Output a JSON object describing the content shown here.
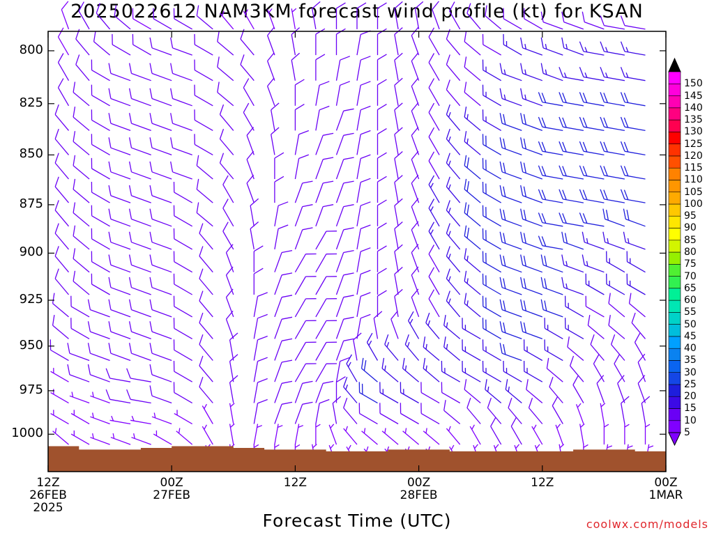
{
  "title": "2025022612 NAM3KM forecast wind profile (kt) for KSAN",
  "xlabel": "Forecast Time (UTC)",
  "credit": "coolwx.com/models",
  "chart_data": {
    "type": "wind-barb time-height profile",
    "title": "2025022612 NAM3KM forecast wind profile (kt) for KSAN",
    "xlabel": "Forecast Time (UTC)",
    "ylabel": "",
    "y_axis_inverted": true,
    "ylim": [
      1022,
      791
    ],
    "yticks": [
      800,
      825,
      850,
      875,
      900,
      925,
      950,
      975,
      1000
    ],
    "xlim": [
      0,
      60
    ],
    "xtick_hours": [
      0,
      12,
      24,
      36,
      48,
      60
    ],
    "xtick_labels": [
      [
        "12Z",
        "26FEB",
        "2025"
      ],
      [
        "00Z",
        "27FEB"
      ],
      [
        "12Z"
      ],
      [
        "00Z",
        "28FEB"
      ],
      [
        "12Z"
      ],
      [
        "00Z",
        "1MAR"
      ]
    ],
    "barb_levels_hpa": [
      790,
      802,
      814,
      826,
      838,
      850,
      862,
      874,
      886,
      898,
      910,
      922,
      934,
      946,
      958,
      970,
      982,
      994,
      1006,
      1018
    ],
    "barb_hours": [
      2,
      4,
      6,
      8,
      10,
      12,
      14,
      16,
      18,
      20,
      22,
      24,
      26,
      28,
      30,
      32,
      34,
      36,
      38,
      40,
      42,
      44,
      46,
      48,
      50,
      52,
      54,
      56,
      58
    ],
    "wind_speed_kt": [
      [
        8,
        10,
        10,
        10,
        8,
        10,
        10,
        10,
        5,
        5,
        5,
        5,
        10,
        10,
        10,
        10,
        10,
        10,
        10,
        10,
        10,
        10,
        10,
        10,
        10,
        10,
        10,
        10,
        10
      ],
      [
        8,
        10,
        10,
        10,
        10,
        10,
        10,
        10,
        10,
        10,
        10,
        10,
        10,
        10,
        10,
        10,
        10,
        10,
        10,
        10,
        10,
        10,
        15,
        15,
        15,
        15,
        15,
        15,
        15
      ],
      [
        10,
        10,
        10,
        10,
        10,
        10,
        10,
        10,
        10,
        10,
        10,
        10,
        10,
        10,
        10,
        10,
        10,
        10,
        10,
        10,
        10,
        15,
        15,
        15,
        15,
        15,
        15,
        15,
        15
      ],
      [
        10,
        10,
        10,
        10,
        10,
        10,
        10,
        10,
        10,
        10,
        10,
        10,
        10,
        10,
        10,
        10,
        10,
        10,
        10,
        10,
        10,
        15,
        15,
        15,
        20,
        20,
        20,
        20,
        20
      ],
      [
        10,
        10,
        10,
        10,
        10,
        10,
        10,
        10,
        10,
        10,
        10,
        10,
        10,
        10,
        10,
        10,
        10,
        10,
        10,
        15,
        15,
        15,
        20,
        20,
        20,
        20,
        20,
        20,
        20
      ],
      [
        10,
        10,
        10,
        10,
        10,
        10,
        10,
        10,
        10,
        10,
        10,
        10,
        10,
        10,
        10,
        10,
        10,
        10,
        10,
        15,
        15,
        20,
        20,
        20,
        20,
        20,
        20,
        20,
        20
      ],
      [
        10,
        10,
        10,
        10,
        10,
        10,
        10,
        10,
        10,
        10,
        10,
        10,
        10,
        10,
        10,
        10,
        10,
        10,
        10,
        15,
        20,
        20,
        20,
        20,
        20,
        20,
        20,
        20,
        20
      ],
      [
        10,
        10,
        10,
        10,
        10,
        10,
        10,
        10,
        10,
        10,
        10,
        10,
        10,
        10,
        10,
        10,
        10,
        10,
        15,
        15,
        20,
        20,
        20,
        20,
        20,
        20,
        20,
        20,
        20
      ],
      [
        10,
        10,
        10,
        10,
        10,
        10,
        10,
        10,
        10,
        10,
        10,
        10,
        10,
        10,
        10,
        10,
        10,
        10,
        15,
        15,
        20,
        20,
        20,
        20,
        20,
        20,
        20,
        20,
        20
      ],
      [
        10,
        10,
        10,
        10,
        10,
        10,
        10,
        10,
        10,
        10,
        10,
        10,
        10,
        10,
        10,
        10,
        10,
        10,
        15,
        15,
        20,
        20,
        20,
        20,
        20,
        20,
        15,
        15,
        15
      ],
      [
        10,
        10,
        10,
        10,
        10,
        10,
        10,
        10,
        10,
        10,
        10,
        10,
        10,
        10,
        10,
        10,
        10,
        10,
        10,
        15,
        15,
        20,
        20,
        20,
        20,
        15,
        15,
        15,
        15
      ],
      [
        10,
        10,
        10,
        10,
        10,
        10,
        10,
        10,
        10,
        10,
        10,
        10,
        10,
        10,
        10,
        10,
        10,
        10,
        10,
        15,
        15,
        20,
        20,
        20,
        20,
        15,
        15,
        15,
        15
      ],
      [
        10,
        10,
        10,
        10,
        10,
        10,
        10,
        10,
        10,
        10,
        10,
        10,
        10,
        10,
        10,
        10,
        10,
        10,
        10,
        15,
        15,
        20,
        20,
        20,
        20,
        15,
        10,
        10,
        10
      ],
      [
        10,
        10,
        10,
        10,
        10,
        10,
        10,
        10,
        10,
        10,
        10,
        10,
        10,
        10,
        10,
        10,
        10,
        15,
        15,
        15,
        15,
        20,
        20,
        20,
        15,
        15,
        10,
        10,
        10
      ],
      [
        10,
        10,
        10,
        10,
        10,
        10,
        10,
        10,
        10,
        10,
        10,
        10,
        10,
        10,
        10,
        15,
        15,
        15,
        15,
        15,
        15,
        15,
        20,
        15,
        15,
        10,
        10,
        10,
        10
      ],
      [
        5,
        10,
        10,
        10,
        10,
        10,
        10,
        10,
        10,
        10,
        10,
        10,
        10,
        10,
        15,
        20,
        15,
        15,
        15,
        15,
        15,
        15,
        15,
        15,
        10,
        10,
        10,
        10,
        10
      ],
      [
        5,
        5,
        5,
        10,
        10,
        10,
        10,
        10,
        10,
        10,
        10,
        10,
        10,
        10,
        15,
        20,
        15,
        15,
        10,
        10,
        10,
        15,
        15,
        10,
        10,
        10,
        10,
        10,
        10
      ],
      [
        5,
        5,
        5,
        5,
        5,
        5,
        5,
        5,
        5,
        10,
        10,
        10,
        10,
        10,
        10,
        10,
        10,
        10,
        10,
        10,
        10,
        10,
        10,
        10,
        10,
        5,
        5,
        10,
        10
      ],
      [
        5,
        5,
        5,
        5,
        5,
        5,
        5,
        5,
        5,
        5,
        5,
        5,
        5,
        5,
        5,
        5,
        5,
        5,
        5,
        5,
        5,
        10,
        10,
        5,
        5,
        5,
        5,
        5,
        5
      ],
      [
        5,
        5,
        5,
        5,
        5,
        5,
        5,
        5,
        5,
        5,
        5,
        5,
        5,
        5,
        5,
        5,
        5,
        5,
        5,
        5,
        5,
        5,
        5,
        5,
        5,
        5,
        5,
        5,
        5
      ]
    ],
    "wind_dir_deg": [
      [
        340,
        330,
        320,
        310,
        300,
        300,
        300,
        310,
        320,
        330,
        340,
        350,
        350,
        0,
        0,
        0,
        350,
        350,
        340,
        330,
        320,
        310,
        300,
        300,
        290,
        290,
        290,
        280,
        280
      ],
      [
        330,
        320,
        310,
        300,
        300,
        290,
        290,
        300,
        310,
        320,
        340,
        350,
        0,
        0,
        10,
        0,
        350,
        340,
        330,
        320,
        310,
        300,
        300,
        290,
        290,
        290,
        280,
        280,
        280
      ],
      [
        330,
        320,
        300,
        290,
        290,
        290,
        290,
        300,
        310,
        320,
        340,
        350,
        0,
        10,
        10,
        0,
        350,
        340,
        330,
        320,
        310,
        300,
        290,
        290,
        290,
        280,
        280,
        280,
        280
      ],
      [
        330,
        310,
        300,
        290,
        290,
        290,
        290,
        300,
        310,
        330,
        340,
        0,
        10,
        10,
        10,
        0,
        350,
        340,
        330,
        320,
        310,
        300,
        290,
        290,
        280,
        280,
        280,
        280,
        280
      ],
      [
        320,
        310,
        300,
        290,
        290,
        290,
        290,
        300,
        320,
        330,
        350,
        0,
        10,
        20,
        10,
        0,
        350,
        340,
        330,
        320,
        310,
        300,
        290,
        290,
        280,
        280,
        280,
        280,
        280
      ],
      [
        320,
        310,
        300,
        290,
        290,
        290,
        290,
        300,
        320,
        340,
        350,
        10,
        20,
        20,
        10,
        0,
        350,
        340,
        330,
        320,
        310,
        300,
        290,
        290,
        280,
        280,
        280,
        280,
        280
      ],
      [
        320,
        310,
        300,
        290,
        290,
        290,
        290,
        310,
        320,
        340,
        0,
        10,
        20,
        20,
        10,
        0,
        350,
        340,
        330,
        320,
        310,
        300,
        290,
        290,
        280,
        280,
        280,
        280,
        280
      ],
      [
        320,
        310,
        300,
        290,
        290,
        290,
        300,
        310,
        330,
        340,
        0,
        20,
        20,
        20,
        10,
        0,
        350,
        340,
        330,
        320,
        310,
        300,
        290,
        290,
        280,
        280,
        280,
        280,
        280
      ],
      [
        320,
        310,
        300,
        290,
        290,
        290,
        300,
        310,
        330,
        350,
        10,
        20,
        20,
        20,
        10,
        0,
        350,
        340,
        330,
        320,
        310,
        300,
        290,
        290,
        280,
        280,
        280,
        290,
        290
      ],
      [
        320,
        310,
        300,
        290,
        290,
        290,
        300,
        320,
        330,
        350,
        10,
        20,
        30,
        20,
        10,
        0,
        350,
        340,
        330,
        320,
        310,
        300,
        290,
        290,
        280,
        290,
        290,
        290,
        290
      ],
      [
        320,
        310,
        300,
        290,
        290,
        290,
        300,
        320,
        340,
        0,
        20,
        30,
        30,
        20,
        10,
        0,
        350,
        340,
        330,
        320,
        310,
        300,
        290,
        290,
        290,
        290,
        290,
        300,
        300
      ],
      [
        320,
        310,
        300,
        290,
        290,
        290,
        300,
        320,
        340,
        0,
        20,
        30,
        30,
        20,
        10,
        0,
        350,
        340,
        330,
        320,
        310,
        300,
        290,
        290,
        290,
        290,
        300,
        300,
        300
      ],
      [
        310,
        300,
        290,
        290,
        290,
        290,
        300,
        320,
        340,
        10,
        20,
        30,
        30,
        20,
        10,
        0,
        350,
        340,
        330,
        320,
        310,
        300,
        290,
        290,
        290,
        300,
        300,
        310,
        310
      ],
      [
        310,
        300,
        290,
        290,
        290,
        290,
        300,
        320,
        340,
        10,
        20,
        30,
        30,
        20,
        10,
        350,
        340,
        330,
        320,
        310,
        300,
        300,
        290,
        290,
        300,
        300,
        310,
        310,
        320
      ],
      [
        300,
        290,
        290,
        290,
        290,
        290,
        300,
        320,
        350,
        10,
        20,
        30,
        30,
        20,
        350,
        330,
        320,
        320,
        310,
        310,
        300,
        300,
        290,
        300,
        300,
        310,
        320,
        320,
        330
      ],
      [
        300,
        290,
        290,
        280,
        280,
        290,
        300,
        320,
        350,
        10,
        20,
        30,
        30,
        10,
        330,
        310,
        310,
        310,
        310,
        300,
        300,
        300,
        300,
        300,
        310,
        320,
        330,
        330,
        340
      ],
      [
        300,
        290,
        290,
        280,
        280,
        290,
        300,
        320,
        350,
        10,
        20,
        20,
        20,
        0,
        320,
        300,
        300,
        300,
        300,
        300,
        310,
        310,
        310,
        310,
        320,
        330,
        340,
        340,
        340
      ],
      [
        300,
        300,
        290,
        280,
        280,
        290,
        300,
        330,
        350,
        10,
        20,
        20,
        10,
        350,
        320,
        300,
        300,
        300,
        300,
        310,
        320,
        320,
        320,
        320,
        330,
        340,
        350,
        350,
        350
      ],
      [
        310,
        300,
        290,
        290,
        290,
        300,
        310,
        330,
        350,
        10,
        10,
        10,
        0,
        340,
        320,
        310,
        310,
        310,
        310,
        320,
        330,
        330,
        330,
        330,
        340,
        350,
        0,
        0,
        0
      ],
      [
        310,
        310,
        300,
        300,
        300,
        310,
        320,
        340,
        350,
        0,
        0,
        0,
        350,
        340,
        330,
        320,
        320,
        320,
        320,
        330,
        340,
        340,
        340,
        340,
        350,
        0,
        10,
        10,
        10
      ]
    ],
    "surface_pressure_hpa": {
      "hours": [
        0,
        3,
        6,
        9,
        12,
        15,
        18,
        21,
        24,
        27,
        30,
        33,
        36,
        39,
        42,
        45,
        48,
        51,
        54,
        57,
        60
      ],
      "values": [
        1007,
        1009,
        1009,
        1008,
        1007,
        1007,
        1008,
        1009,
        1009,
        1010,
        1010,
        1009,
        1009,
        1010,
        1010,
        1010,
        1010,
        1009,
        1009,
        1010,
        1009
      ]
    },
    "colorbar": {
      "label_values": [
        5,
        10,
        15,
        20,
        25,
        30,
        35,
        40,
        45,
        50,
        55,
        60,
        65,
        70,
        75,
        80,
        85,
        90,
        95,
        100,
        105,
        110,
        115,
        120,
        125,
        130,
        135,
        140,
        145,
        150
      ],
      "colors": [
        "#8000ff",
        "#6a00f5",
        "#3c0ae6",
        "#1e1edc",
        "#1446e6",
        "#0a64f0",
        "#0a82f0",
        "#00a0ff",
        "#00bedc",
        "#00d2c8",
        "#00e6b4",
        "#00f096",
        "#32f050",
        "#50f032",
        "#96f000",
        "#d2f500",
        "#ffff00",
        "#ffe600",
        "#ffc800",
        "#ffaa00",
        "#ff9600",
        "#ff8200",
        "#ff5000",
        "#ff3200",
        "#ff0000",
        "#ff0050",
        "#ff0080",
        "#ff00b4",
        "#ff00dc",
        "#ff00ff"
      ],
      "over_color": "#000000",
      "under_color": "#8000ff"
    },
    "terrain_color": "#a0522d",
    "grid": false,
    "legend": "colorbar right"
  }
}
